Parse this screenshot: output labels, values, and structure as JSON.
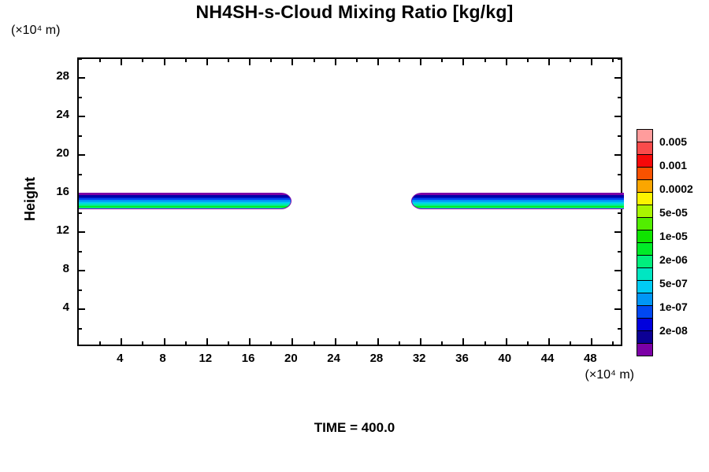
{
  "title": "NH4SH-s-Cloud Mixing Ratio [kg/kg]",
  "time_label": "TIME = 400.0",
  "y_axis": {
    "label": "Height",
    "unit": "(×10⁴  m)",
    "range": [
      0,
      30
    ],
    "major_ticks": [
      4,
      8,
      12,
      16,
      20,
      24,
      28
    ],
    "minor_ticks": [
      2,
      6,
      10,
      14,
      18,
      22,
      26,
      30
    ]
  },
  "x_axis": {
    "unit": "(×10⁴  m)",
    "range": [
      0,
      51
    ],
    "major_ticks": [
      4,
      8,
      12,
      16,
      20,
      24,
      28,
      32,
      36,
      40,
      44,
      48
    ],
    "minor_ticks": [
      2,
      6,
      10,
      14,
      18,
      22,
      26,
      30,
      34,
      38,
      42,
      46,
      50
    ]
  },
  "colorbar": {
    "labels": [
      "0.005",
      "0.001",
      "0.0002",
      "5e-05",
      "1e-05",
      "2e-06",
      "5e-07",
      "1e-07",
      "2e-08"
    ],
    "colors": [
      "#ff9c9c",
      "#f94b4b",
      "#f60909",
      "#f95200",
      "#fba600",
      "#fdf300",
      "#a9f500",
      "#52ee00",
      "#0fe400",
      "#00eb28",
      "#00ee7d",
      "#00e6c2",
      "#00ccf4",
      "#0096f6",
      "#0048f2",
      "#0000dd",
      "#0c0095",
      "#7c00a6"
    ]
  },
  "chart_data": {
    "type": "heatmap",
    "subtype": "filled-contour",
    "title": "NH4SH-s-Cloud Mixing Ratio [kg/kg]",
    "xlabel": "(×10⁴ m)",
    "ylabel": "Height (×10⁴ m)",
    "xlim": [
      0,
      51
    ],
    "ylim": [
      0,
      30
    ],
    "time": "400.0",
    "grid": false,
    "legend_position": "right-colorbar",
    "contour_levels_labeled": [
      "0.005",
      "0.001",
      "0.0002",
      "5e-05",
      "1e-05",
      "2e-06",
      "5e-07",
      "1e-07",
      "2e-08"
    ],
    "clouds": [
      {
        "name": "left-cloud-band",
        "x_from": 0,
        "x_to": 19.9,
        "height_from": 14.4,
        "height_to": 16.1,
        "rounded_end": "right"
      },
      {
        "name": "right-cloud-band",
        "x_from": 31.1,
        "x_to": 51,
        "height_from": 14.4,
        "height_to": 16.1,
        "rounded_end": "left"
      }
    ],
    "band_layers_top_to_bottom": [
      {
        "color": "#7c00a6",
        "frac": 0.1,
        "approx_value": "2e-08"
      },
      {
        "color": "#0000a8",
        "frac": 0.18,
        "approx_value": "1e-07"
      },
      {
        "color": "#0040f0",
        "frac": 0.14,
        "approx_value": "5e-07"
      },
      {
        "color": "#0092f8",
        "frac": 0.13,
        "approx_value": "1e-06"
      },
      {
        "color": "#00ccf4",
        "frac": 0.11,
        "approx_value": "2e-06"
      },
      {
        "color": "#00e6c2",
        "frac": 0.1,
        "approx_value": "5e-06"
      },
      {
        "color": "#00ee7d",
        "frac": 0.07,
        "approx_value": "1e-05"
      },
      {
        "color": "#00eb28",
        "frac": 0.12,
        "approx_value": "2e-05"
      },
      {
        "color": "#00e6c2",
        "frac": 0.05,
        "approx_value": "5e-06"
      }
    ]
  }
}
